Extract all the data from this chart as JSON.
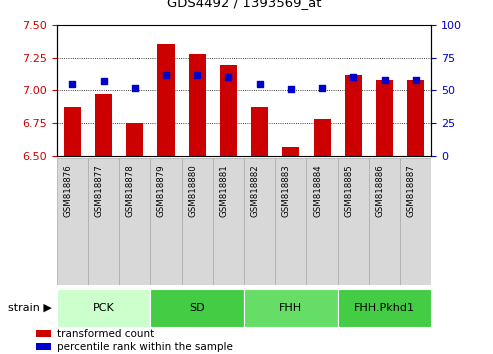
{
  "title": "GDS4492 / 1393569_at",
  "samples": [
    "GSM818876",
    "GSM818877",
    "GSM818878",
    "GSM818879",
    "GSM818880",
    "GSM818881",
    "GSM818882",
    "GSM818883",
    "GSM818884",
    "GSM818885",
    "GSM818886",
    "GSM818887"
  ],
  "transformed_count": [
    6.87,
    6.97,
    6.75,
    7.35,
    7.28,
    7.19,
    6.87,
    6.57,
    6.78,
    7.12,
    7.08,
    7.08
  ],
  "percentile_rank": [
    55,
    57,
    52,
    62,
    62,
    60,
    55,
    51,
    52,
    60,
    58,
    58
  ],
  "ylim_left": [
    6.5,
    7.5
  ],
  "ylim_right": [
    0,
    100
  ],
  "yticks_left": [
    6.5,
    6.75,
    7.0,
    7.25,
    7.5
  ],
  "yticks_right": [
    0,
    25,
    50,
    75,
    100
  ],
  "bar_color": "#cc0000",
  "dot_color": "#0000cc",
  "groups": [
    {
      "label": "PCK",
      "start": 0,
      "end": 3,
      "color": "#ccffcc"
    },
    {
      "label": "SD",
      "start": 3,
      "end": 6,
      "color": "#44cc44"
    },
    {
      "label": "FHH",
      "start": 6,
      "end": 9,
      "color": "#66dd66"
    },
    {
      "label": "FHH.Pkhd1",
      "start": 9,
      "end": 12,
      "color": "#44cc44"
    }
  ],
  "legend_items": [
    {
      "label": "transformed count",
      "color": "#cc0000"
    },
    {
      "label": "percentile rank within the sample",
      "color": "#0000cc"
    }
  ],
  "tick_color_left": "#cc0000",
  "tick_color_right": "#0000cc",
  "base_value": 6.5,
  "bar_width": 0.55,
  "xtick_bg": "#d8d8d8",
  "xtick_border": "#aaaaaa"
}
